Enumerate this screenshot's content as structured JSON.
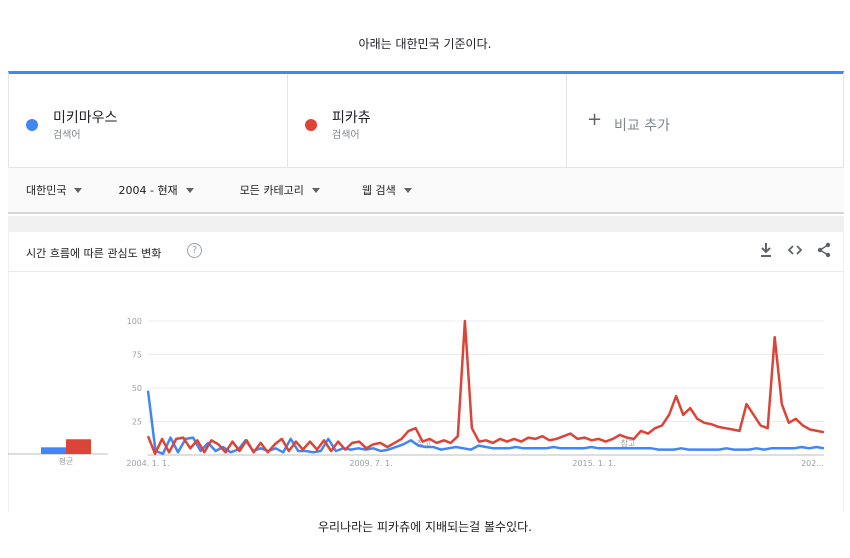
{
  "captions": {
    "top": "아래는 대한민국 기준이다.",
    "bottom": "우리나라는 피카츄에 지배되는걸 볼수있다."
  },
  "compare": {
    "terms": [
      {
        "name": "미키마우스",
        "sub": "검색어",
        "color": "#4285f4"
      },
      {
        "name": "피카츄",
        "sub": "검색어",
        "color": "#db4437"
      }
    ],
    "add_label": "비교 추가",
    "add_icon": "plus-icon"
  },
  "filters": {
    "region": "대한민국",
    "time": "2004 - 현재",
    "category": "모든 카테고리",
    "search_type": "웹 검색"
  },
  "card": {
    "title": "시간 흐름에 따른 관심도 변화",
    "help_icon": "help-icon",
    "icons": [
      "download-icon",
      "embed-icon",
      "share-icon"
    ]
  },
  "chart_data": {
    "type": "line",
    "ylim": [
      0,
      100
    ],
    "yticks": [
      "100",
      "75",
      "50",
      "25"
    ],
    "xticks": [
      "2004. 1. 1.",
      "2009. 7. 1.",
      "2015. 1. 1.",
      "202..."
    ],
    "annotation_label": "참고",
    "average_label": "평균",
    "average_values": [
      5,
      11
    ],
    "series": [
      {
        "color": "#4285f4",
        "values": [
          48,
          3,
          1,
          13,
          2,
          12,
          13,
          3,
          9,
          3,
          6,
          2,
          4,
          11,
          3,
          5,
          3,
          5,
          2,
          12,
          3,
          3,
          2,
          3,
          12,
          3,
          5,
          4,
          5,
          4,
          5,
          3,
          4,
          6,
          8,
          11,
          7,
          6,
          6,
          4,
          5,
          6,
          5,
          4,
          7,
          6,
          5,
          5,
          5,
          6,
          5,
          5,
          5,
          5,
          6,
          5,
          5,
          5,
          5,
          6,
          5,
          5,
          5,
          5,
          5,
          5,
          5,
          5,
          4,
          4,
          4,
          5,
          4,
          4,
          4,
          4,
          4,
          5,
          4,
          4,
          4,
          5,
          4,
          5,
          5,
          5,
          5,
          6,
          5,
          6,
          5
        ]
      },
      {
        "color": "#db4437",
        "values": [
          14,
          1,
          12,
          2,
          12,
          13,
          5,
          11,
          2,
          11,
          8,
          2,
          10,
          3,
          11,
          2,
          9,
          2,
          8,
          12,
          3,
          10,
          4,
          10,
          4,
          11,
          3,
          10,
          4,
          9,
          10,
          5,
          8,
          9,
          6,
          9,
          12,
          18,
          20,
          10,
          12,
          9,
          11,
          9,
          14,
          100,
          20,
          10,
          11,
          9,
          12,
          10,
          12,
          10,
          13,
          12,
          14,
          11,
          12,
          14,
          16,
          12,
          13,
          11,
          12,
          10,
          12,
          15,
          13,
          12,
          18,
          16,
          20,
          22,
          30,
          44,
          30,
          35,
          27,
          24,
          23,
          21,
          20,
          19,
          18,
          38,
          30,
          22,
          20,
          88,
          38,
          24,
          27,
          22,
          19,
          18,
          17
        ]
      }
    ]
  }
}
